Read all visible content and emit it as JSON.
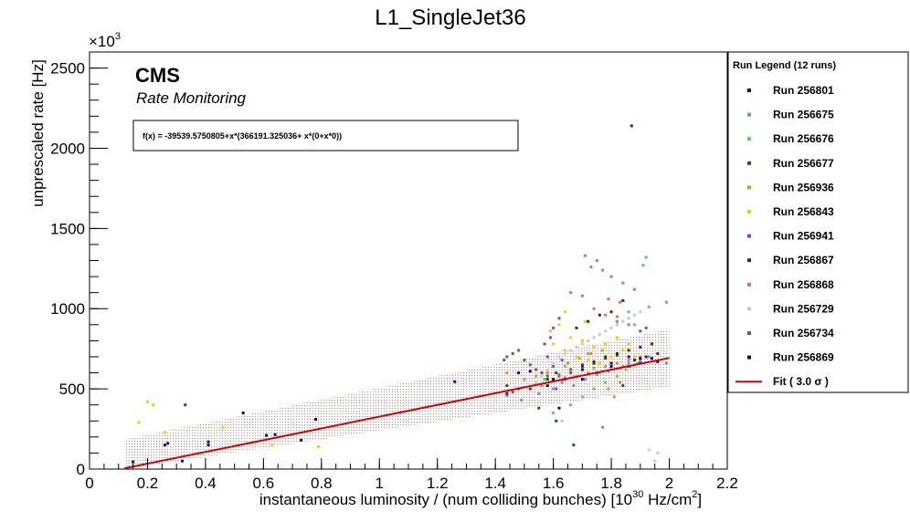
{
  "chart_data": {
    "type": "scatter",
    "title": "L1_SingleJet36",
    "annotation_main": "CMS",
    "annotation_sub": "Rate Monitoring",
    "fit_formula": "f(x) = -39539.5750805+x*(366191.325036+ x*(0+x*0))",
    "xlabel_prefix": "instantaneous luminosity / (num colliding bunches) [10",
    "xlabel_exp": "30",
    "xlabel_suffix": " Hz/cm",
    "xlabel_sup2": "2",
    "xlabel_close": "]",
    "ylabel": "unprescaled rate [Hz]",
    "y_multiplier_base": "×10",
    "y_multiplier_exp": "3",
    "xlim": [
      0,
      2.2
    ],
    "ylim": [
      0,
      2600
    ],
    "x_ticks": [
      0,
      0.2,
      0.4,
      0.6,
      0.8,
      1,
      1.2,
      1.4,
      1.6,
      1.8,
      2,
      2.2
    ],
    "x_tick_labels": [
      "0",
      "0.2",
      "0.4",
      "0.6",
      "0.8",
      "1",
      "1.2",
      "1.4",
      "1.6",
      "1.8",
      "2",
      "2.2"
    ],
    "y_ticks": [
      0,
      500,
      1000,
      1500,
      2000,
      2500
    ],
    "y_tick_labels": [
      "0",
      "500",
      "1000",
      "1500",
      "2000",
      "2500"
    ],
    "fit": {
      "intercept": -39.5396,
      "slope": 366.191,
      "x_range": [
        0.12,
        2.0
      ],
      "band_sigma": 3.0,
      "band_halfwidth": 180,
      "color": "#d40000"
    },
    "legend_title": "Run Legend (12 runs)",
    "fit_legend_label": "Fit ( 3.0  σ )",
    "legend_position": "right",
    "grid": false,
    "series": [
      {
        "name": "Run 256801",
        "color": "#0a0a8c",
        "points": [
          [
            0.15,
            45
          ],
          [
            0.27,
            160
          ],
          [
            0.32,
            50
          ],
          [
            0.41,
            150
          ],
          [
            0.53,
            350
          ],
          [
            0.64,
            215
          ],
          [
            0.78,
            310
          ],
          [
            1.26,
            545
          ],
          [
            1.44,
            470
          ],
          [
            1.52,
            610
          ],
          [
            1.58,
            520
          ],
          [
            1.62,
            380
          ],
          [
            1.7,
            560
          ],
          [
            1.75,
            600
          ],
          [
            1.8,
            640
          ],
          [
            1.86,
            700
          ],
          [
            1.9,
            660
          ],
          [
            1.94,
            690
          ]
        ]
      },
      {
        "name": "Run 256675",
        "color": "#6f8fe0",
        "points": [
          [
            1.49,
            430
          ],
          [
            1.55,
            470
          ],
          [
            1.6,
            500
          ],
          [
            1.63,
            540
          ],
          [
            1.67,
            520
          ],
          [
            1.71,
            560
          ],
          [
            1.75,
            590
          ],
          [
            1.79,
            610
          ],
          [
            1.83,
            630
          ],
          [
            1.86,
            660
          ],
          [
            1.9,
            680
          ],
          [
            1.93,
            700
          ],
          [
            1.96,
            670
          ],
          [
            1.99,
            660
          ],
          [
            1.99,
            1040
          ],
          [
            1.77,
            260
          ],
          [
            1.82,
            950
          ]
        ]
      },
      {
        "name": "Run 256676",
        "color": "#64c864",
        "points": [
          [
            1.6,
            350
          ],
          [
            1.66,
            400
          ],
          [
            1.7,
            450
          ],
          [
            1.74,
            500
          ],
          [
            1.78,
            540
          ],
          [
            1.82,
            580
          ],
          [
            1.85,
            620
          ],
          [
            1.89,
            660
          ],
          [
            1.91,
            1270
          ],
          [
            1.92,
            1320
          ],
          [
            1.93,
            1010
          ],
          [
            1.86,
            980
          ],
          [
            1.72,
            720
          ],
          [
            1.64,
            640
          ],
          [
            1.57,
            560
          ],
          [
            1.81,
            450
          ],
          [
            1.88,
            900
          ]
        ]
      },
      {
        "name": "Run 256677",
        "color": "#0f6414",
        "points": [
          [
            0.33,
            400
          ],
          [
            1.44,
            520
          ],
          [
            1.52,
            500
          ],
          [
            1.58,
            560
          ],
          [
            1.61,
            600
          ],
          [
            1.66,
            620
          ],
          [
            1.7,
            650
          ],
          [
            1.74,
            670
          ],
          [
            1.78,
            690
          ],
          [
            1.82,
            710
          ],
          [
            1.86,
            640
          ],
          [
            1.61,
            300
          ],
          [
            1.67,
            150
          ],
          [
            1.55,
            380
          ],
          [
            1.84,
            520
          ]
        ]
      },
      {
        "name": "Run 256936",
        "color": "#f08a28",
        "points": [
          [
            1.44,
            600
          ],
          [
            1.5,
            560
          ],
          [
            1.54,
            580
          ],
          [
            1.58,
            600
          ],
          [
            1.62,
            590
          ],
          [
            1.66,
            610
          ],
          [
            1.7,
            620
          ],
          [
            1.74,
            630
          ],
          [
            1.78,
            640
          ],
          [
            1.82,
            660
          ],
          [
            1.86,
            680
          ],
          [
            1.9,
            700
          ],
          [
            1.56,
            520
          ],
          [
            1.6,
            550
          ],
          [
            1.64,
            570
          ],
          [
            1.68,
            580
          ],
          [
            1.72,
            600
          ],
          [
            1.76,
            600
          ],
          [
            1.8,
            620
          ],
          [
            1.84,
            640
          ],
          [
            1.88,
            650
          ],
          [
            1.73,
            720
          ],
          [
            1.77,
            740
          ],
          [
            1.69,
            690
          ],
          [
            1.65,
            660
          ],
          [
            1.83,
            540
          ],
          [
            1.79,
            500
          ]
        ]
      },
      {
        "name": "Run 256843",
        "color": "#ffc40a",
        "points": [
          [
            0.17,
            290
          ],
          [
            0.2,
            420
          ],
          [
            0.22,
            400
          ],
          [
            0.26,
            230
          ],
          [
            0.46,
            260
          ],
          [
            0.63,
            150
          ],
          [
            0.79,
            140
          ],
          [
            1.59,
            860
          ],
          [
            1.62,
            900
          ],
          [
            1.66,
            820
          ],
          [
            1.7,
            800
          ],
          [
            1.74,
            760
          ],
          [
            1.78,
            780
          ],
          [
            1.82,
            820
          ],
          [
            1.86,
            780
          ],
          [
            1.6,
            780
          ],
          [
            1.64,
            740
          ],
          [
            1.68,
            700
          ],
          [
            1.72,
            680
          ],
          [
            1.76,
            660
          ],
          [
            1.8,
            700
          ],
          [
            1.84,
            740
          ],
          [
            1.88,
            700
          ],
          [
            1.64,
            980
          ],
          [
            1.71,
            920
          ]
        ]
      },
      {
        "name": "Run 256941",
        "color": "#8c3cdc",
        "points": [
          [
            1.57,
            780
          ],
          [
            1.59,
            820
          ],
          [
            1.6,
            880
          ],
          [
            1.62,
            940
          ],
          [
            1.58,
            700
          ],
          [
            1.6,
            640
          ],
          [
            1.62,
            580
          ],
          [
            1.64,
            560
          ],
          [
            1.66,
            600
          ],
          [
            1.63,
            680
          ],
          [
            1.61,
            500
          ]
        ]
      },
      {
        "name": "Run 256867",
        "color": "#50280a",
        "points": [
          [
            1.87,
            2140
          ],
          [
            1.84,
            1050
          ],
          [
            1.8,
            980
          ],
          [
            1.76,
            960
          ],
          [
            1.72,
            920
          ],
          [
            1.68,
            880
          ],
          [
            1.78,
            700
          ],
          [
            1.82,
            720
          ],
          [
            1.86,
            740
          ],
          [
            1.9,
            760
          ],
          [
            1.94,
            780
          ],
          [
            1.74,
            660
          ],
          [
            1.7,
            640
          ],
          [
            1.88,
            680
          ],
          [
            1.92,
            700
          ],
          [
            1.96,
            720
          ]
        ]
      },
      {
        "name": "Run 256868",
        "color": "#dc6e6e",
        "points": [
          [
            1.71,
            1330
          ],
          [
            1.75,
            1300
          ],
          [
            1.73,
            1260
          ],
          [
            1.77,
            1240
          ],
          [
            1.8,
            1200
          ],
          [
            1.84,
            1160
          ],
          [
            1.88,
            1120
          ],
          [
            1.66,
            1100
          ],
          [
            1.7,
            1080
          ],
          [
            1.79,
            1060
          ],
          [
            1.83,
            1040
          ],
          [
            1.74,
            1000
          ],
          [
            1.78,
            960
          ],
          [
            1.82,
            920
          ],
          [
            1.86,
            900
          ]
        ]
      },
      {
        "name": "Run 256729",
        "color": "#c8c8c8",
        "points": [
          [
            1.54,
            540
          ],
          [
            1.56,
            580
          ],
          [
            1.58,
            620
          ],
          [
            1.6,
            660
          ],
          [
            1.62,
            700
          ],
          [
            1.64,
            720
          ],
          [
            1.66,
            740
          ],
          [
            1.68,
            760
          ],
          [
            1.7,
            780
          ],
          [
            1.72,
            800
          ],
          [
            1.74,
            820
          ],
          [
            1.76,
            840
          ],
          [
            1.78,
            860
          ],
          [
            1.8,
            880
          ],
          [
            1.82,
            900
          ],
          [
            1.84,
            920
          ],
          [
            1.86,
            940
          ],
          [
            1.88,
            960
          ],
          [
            1.9,
            980
          ],
          [
            1.95,
            50
          ],
          [
            1.96,
            100
          ],
          [
            1.93,
            120
          ],
          [
            1.63,
            300
          ]
        ]
      },
      {
        "name": "Run 256734",
        "color": "#646464",
        "points": [
          [
            1.43,
            680
          ],
          [
            1.44,
            700
          ],
          [
            1.46,
            720
          ],
          [
            1.48,
            740
          ],
          [
            1.5,
            680
          ],
          [
            1.52,
            650
          ],
          [
            1.54,
            620
          ],
          [
            1.56,
            600
          ],
          [
            1.58,
            580
          ],
          [
            1.46,
            480
          ],
          [
            1.44,
            460
          ],
          [
            1.48,
            500
          ],
          [
            1.9,
            860
          ],
          [
            1.92,
            880
          ]
        ]
      },
      {
        "name": "Run 256869",
        "color": "#101050",
        "points": [
          [
            0.26,
            150
          ],
          [
            0.41,
            170
          ],
          [
            0.61,
            210
          ],
          [
            0.73,
            180
          ],
          [
            1.48,
            600
          ],
          [
            1.6,
            560
          ],
          [
            1.7,
            620
          ],
          [
            1.8,
            660
          ],
          [
            1.9,
            690
          ],
          [
            1.96,
            670
          ]
        ]
      }
    ]
  }
}
